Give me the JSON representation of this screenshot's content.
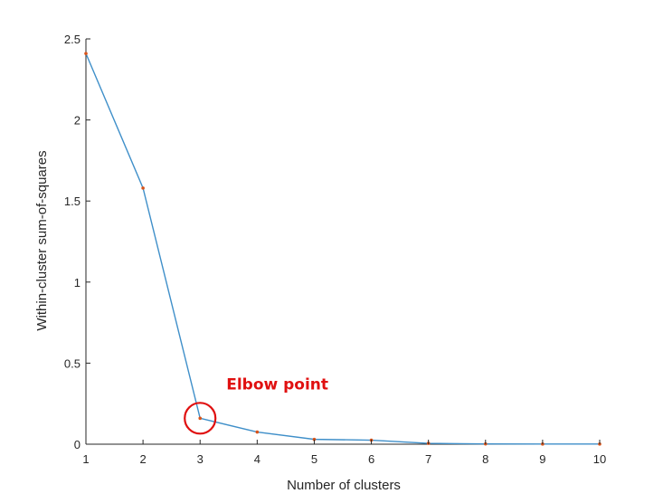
{
  "chart_data": {
    "type": "line",
    "title": "",
    "xlabel": "Number of clusters",
    "ylabel": "Within-cluster sum-of-squares",
    "xlim": [
      1,
      10
    ],
    "ylim": [
      0,
      2.5
    ],
    "x_ticks": [
      1,
      2,
      3,
      4,
      5,
      6,
      7,
      8,
      9,
      10
    ],
    "y_ticks": [
      0,
      0.5,
      1,
      1.5,
      2,
      2.5
    ],
    "y_tick_labels": [
      "0",
      "0.5",
      "1",
      "1.5",
      "2",
      "2.5"
    ],
    "grid": false,
    "legend": "none",
    "series": [
      {
        "x": [
          1,
          2,
          3,
          4,
          5,
          6,
          7,
          8,
          9,
          10
        ],
        "y": [
          2.41,
          1.58,
          0.16,
          0.075,
          0.03,
          0.025,
          0.005,
          0.002,
          0.001,
          0.001
        ],
        "line_color": "#3f8fc9",
        "marker_color": "#d95319"
      }
    ],
    "annotations": [
      {
        "text": "Elbow point",
        "x": 3,
        "y": 0.16,
        "color": "#e01010"
      }
    ]
  }
}
